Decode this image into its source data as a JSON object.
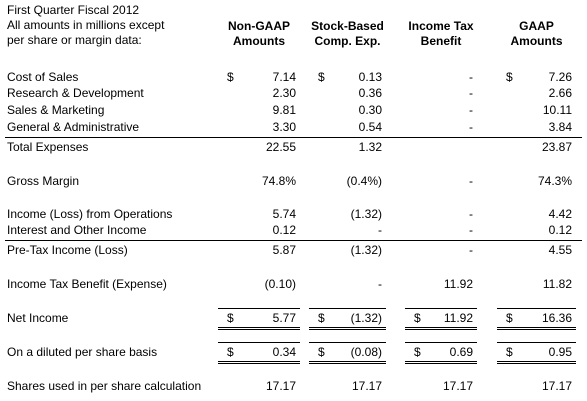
{
  "header": {
    "title_lines": [
      "First Quarter Fiscal 2012",
      "All amounts in millions except",
      "per share or margin data:"
    ]
  },
  "columns": [
    [
      "Non-GAAP",
      "Amounts"
    ],
    [
      "Stock-Based",
      "Comp. Exp."
    ],
    [
      "Income Tax",
      "Benefit"
    ],
    [
      "GAAP",
      "Amounts"
    ]
  ],
  "rows": [
    {
      "label": "Cost of Sales",
      "cells": [
        {
          "currency": "$",
          "amount": "7.14"
        },
        {
          "currency": "$",
          "amount": "0.13"
        },
        "-",
        {
          "currency": "$",
          "amount": "7.26"
        }
      ]
    },
    {
      "label": "Research & Development",
      "cells": [
        "2.30",
        "0.36",
        "-",
        "2.66"
      ]
    },
    {
      "label": "Sales & Marketing",
      "cells": [
        "9.81",
        "0.30",
        "-",
        "10.11"
      ]
    },
    {
      "label": "General & Administrative",
      "cells": [
        "3.30",
        "0.54",
        "-",
        "3.84"
      ]
    },
    {
      "label": "Total Expenses",
      "cells": [
        "22.55",
        "1.32",
        null,
        "23.87"
      ]
    },
    {
      "label": "Gross Margin",
      "cells": [
        "74.8%",
        "(0.4%)",
        "-",
        "74.3%"
      ]
    },
    {
      "label": "Income (Loss) from Operations",
      "cells": [
        "5.74",
        "(1.32)",
        "-",
        "4.42"
      ]
    },
    {
      "label": "Interest and Other Income",
      "cells": [
        "0.12",
        "-",
        "-",
        "0.12"
      ]
    },
    {
      "label": "Pre-Tax Income (Loss)",
      "cells": [
        "5.87",
        "(1.32)",
        "-",
        "4.55"
      ]
    },
    {
      "label": "Income Tax Benefit (Expense)",
      "cells": [
        "(0.10)",
        "-",
        "11.92",
        "11.82"
      ]
    },
    {
      "label": "Net Income",
      "cells": [
        {
          "currency": "$",
          "amount": "5.77"
        },
        {
          "currency": "$",
          "amount": "(1.32)"
        },
        {
          "currency": "$",
          "amount": "11.92"
        },
        {
          "currency": "$",
          "amount": "16.36"
        }
      ]
    },
    {
      "label": "On a diluted per share basis",
      "cells": [
        {
          "currency": "$",
          "amount": "0.34"
        },
        {
          "currency": "$",
          "amount": "(0.08)"
        },
        {
          "currency": "$",
          "amount": "0.69"
        },
        {
          "currency": "$",
          "amount": "0.95"
        }
      ]
    },
    {
      "label": "Shares used in per share calculation",
      "cells": [
        "17.17",
        "17.17",
        "17.17",
        "17.17"
      ]
    }
  ]
}
